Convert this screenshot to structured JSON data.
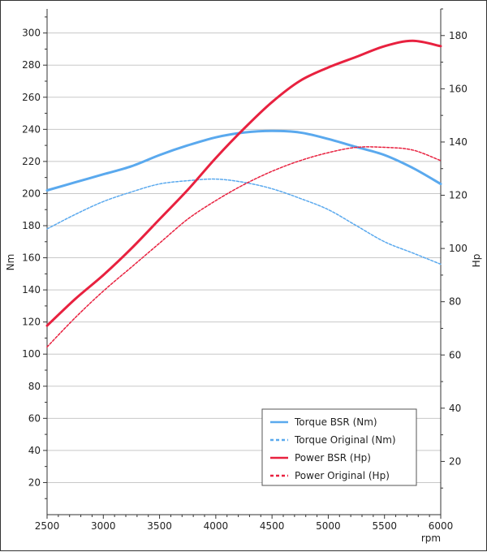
{
  "chart_data": {
    "type": "line",
    "x_label": "rpm",
    "y_left_label": "Nm",
    "y_right_label": "Hp",
    "xlim": [
      2500,
      6000
    ],
    "ylim_left": [
      0,
      315
    ],
    "ylim_right": [
      0,
      190
    ],
    "x_ticks": [
      2500,
      3000,
      3500,
      4000,
      4500,
      5000,
      5500,
      6000
    ],
    "y_left_ticks": [
      20,
      40,
      60,
      80,
      100,
      120,
      140,
      160,
      180,
      200,
      220,
      240,
      260,
      280,
      300
    ],
    "y_right_ticks": [
      20,
      40,
      60,
      80,
      100,
      120,
      140,
      160,
      180
    ],
    "grid": "horizontal",
    "legend_position": "bottom-right",
    "series": [
      {
        "name": "Torque BSR (Nm)",
        "axis": "left",
        "color": "#5aa9ee",
        "style": "solid",
        "x": [
          2500,
          2750,
          3000,
          3250,
          3500,
          3750,
          4000,
          4250,
          4500,
          4750,
          5000,
          5250,
          5500,
          5750,
          6000
        ],
        "y": [
          202,
          207,
          212,
          217,
          224,
          230,
          235,
          238,
          239,
          238,
          234,
          229,
          224,
          216,
          206
        ]
      },
      {
        "name": "Torque Original (Nm)",
        "axis": "left",
        "color": "#5aa9ee",
        "style": "dashed",
        "x": [
          2500,
          2750,
          3000,
          3250,
          3500,
          3750,
          4000,
          4250,
          4500,
          4750,
          5000,
          5250,
          5500,
          5750,
          6000
        ],
        "y": [
          178,
          187,
          195,
          201,
          206,
          208,
          209,
          207,
          203,
          197,
          190,
          180,
          170,
          163,
          156
        ]
      },
      {
        "name": "Power BSR (Hp)",
        "axis": "right",
        "color": "#e8213f",
        "style": "solid",
        "x": [
          2500,
          2750,
          3000,
          3250,
          3500,
          3750,
          4000,
          4250,
          4500,
          4750,
          5000,
          5250,
          5500,
          5750,
          6000
        ],
        "y": [
          71,
          81,
          90,
          100,
          111,
          122,
          134,
          145,
          155,
          163,
          168,
          172,
          176,
          178,
          176
        ]
      },
      {
        "name": "Power Original (Hp)",
        "axis": "right",
        "color": "#e8213f",
        "style": "dashed",
        "x": [
          2500,
          2750,
          3000,
          3250,
          3500,
          3750,
          4000,
          4250,
          4500,
          4750,
          5000,
          5250,
          5500,
          5750,
          6000
        ],
        "y": [
          63,
          74,
          84,
          93,
          102,
          111,
          118,
          124,
          129,
          133,
          136,
          138,
          138,
          137,
          133
        ]
      }
    ]
  }
}
